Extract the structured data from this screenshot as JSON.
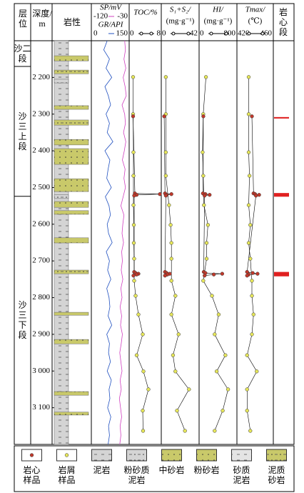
{
  "chart_data": {
    "type": "well-log",
    "header": {
      "strat": "层位",
      "depth": "深度/m",
      "lith": "岩性",
      "core": "岩心段"
    },
    "ylim": [
      2100,
      3200
    ],
    "yticks": [
      {
        "value": 2200,
        "label": "2 200"
      },
      {
        "value": 2300,
        "label": "2 300"
      },
      {
        "value": 2400,
        "label": "2 400"
      },
      {
        "value": 2500,
        "label": "2 500"
      },
      {
        "value": 2600,
        "label": "2 600"
      },
      {
        "value": 2700,
        "label": "2 700"
      },
      {
        "value": 2800,
        "label": "2 800"
      },
      {
        "value": 2900,
        "label": "2 900"
      },
      {
        "value": 3000,
        "label": "3 000"
      },
      {
        "value": 3100,
        "label": "3 100"
      }
    ],
    "strata": [
      {
        "name": "沙二段",
        "top": 2100,
        "base": 2170
      },
      {
        "name": "沙三上段",
        "top": 2170,
        "base": 2524
      },
      {
        "name": "沙三下段",
        "top": 2524,
        "base": 3200
      }
    ],
    "lithology": [
      {
        "type": "泥岩",
        "top": 2100,
        "base": 3200
      },
      {
        "type": "粉砂质泥岩",
        "top": 2205,
        "base": 2215
      },
      {
        "type": "粉砂质泥岩",
        "top": 2520,
        "base": 2530
      },
      {
        "type": "粉砂岩",
        "top": 2141,
        "base": 2155
      },
      {
        "type": "泥质砂岩",
        "top": 2180,
        "base": 2190
      },
      {
        "type": "粉砂岩",
        "top": 2277,
        "base": 2287
      },
      {
        "type": "泥质砂岩",
        "top": 2316,
        "base": 2330
      },
      {
        "type": "粉砂岩",
        "top": 2369,
        "base": 2384
      },
      {
        "type": "中砂岩",
        "top": 2394,
        "base": 2437
      },
      {
        "type": "中砂岩",
        "top": 2476,
        "base": 2511
      },
      {
        "type": "粉砂岩",
        "top": 2538,
        "base": 2554
      },
      {
        "type": "泥质砂岩",
        "top": 2563,
        "base": 2573
      },
      {
        "type": "粉砂岩",
        "top": 2637,
        "base": 2651
      },
      {
        "type": "泥质砂岩",
        "top": 2725,
        "base": 2735
      },
      {
        "type": "粉砂岩",
        "top": 2840,
        "base": 2848
      },
      {
        "type": "粉砂岩",
        "top": 2914,
        "base": 2926
      },
      {
        "type": "泥质砂岩",
        "top": 3056,
        "base": 3066
      },
      {
        "type": "粉砂岩",
        "top": 3112,
        "base": 3120
      }
    ],
    "logs": {
      "depth": [
        2100,
        2125,
        2150,
        2175,
        2200,
        2225,
        2250,
        2275,
        2300,
        2325,
        2350,
        2375,
        2400,
        2425,
        2450,
        2475,
        2500,
        2525,
        2550,
        2575,
        2600,
        2625,
        2650,
        2675,
        2700,
        2725,
        2750,
        2775,
        2800,
        2825,
        2850,
        2875,
        2900,
        2925,
        2950,
        2975,
        3000,
        3025,
        3050,
        3075,
        3100,
        3125,
        3150,
        3175,
        3200
      ],
      "series": [
        {
          "name": "SP/mV",
          "color": "#d040c0",
          "xlim": [
            -120,
            -30
          ],
          "values": [
            -38,
            -36,
            -40,
            -35,
            -42,
            -37,
            -34,
            -45,
            -38,
            -36,
            -41,
            -35,
            -39,
            -44,
            -37,
            -40,
            -36,
            -42,
            -48,
            -40,
            -43,
            -45,
            -41,
            -46,
            -44,
            -47,
            -43,
            -48,
            -45,
            -50,
            -46,
            -49,
            -44,
            -47,
            -51,
            -48,
            -45,
            -50,
            -47,
            -52,
            -49,
            -46,
            -50,
            -48,
            -51
          ]
        },
        {
          "name": "GR/API",
          "color": "#2050c0",
          "xlim": [
            0,
            150
          ],
          "values": [
            60,
            45,
            70,
            55,
            80,
            50,
            65,
            75,
            55,
            70,
            60,
            85,
            50,
            72,
            64,
            58,
            78,
            52,
            68,
            74,
            60,
            66,
            82,
            56,
            70,
            62,
            76,
            58,
            68,
            72,
            64,
            80,
            58,
            70,
            66,
            74,
            60,
            78,
            68,
            72,
            62,
            76,
            66,
            70,
            64
          ]
        }
      ]
    },
    "cuttings_depth": [
      2199,
      2300,
      2404,
      2468,
      2548,
      2602,
      2651,
      2694,
      2754,
      2795,
      2846,
      2900,
      2957,
      3001,
      3050,
      3108,
      3163
    ],
    "core_depth": [
      2306,
      2516,
      2518,
      2520,
      2522,
      2730,
      2733,
      2735,
      2737,
      2740
    ],
    "cuttings_color": "#e6e65a",
    "core_color": "#c0392b",
    "tracks": [
      {
        "label": "TOC/%",
        "xlim": [
          0,
          8
        ],
        "cuttings": [
          0.5,
          0.5,
          0.6,
          0.6,
          0.6,
          0.7,
          0.7,
          0.8,
          0.8,
          1.2,
          2.0,
          3.2,
          1.5,
          3.4,
          4.8,
          3.2,
          3.3
        ],
        "core": [
          0.5,
          1.0,
          8.0,
          1.5,
          0.8,
          0.8,
          1.2,
          2.0,
          1.5,
          0.6
        ]
      },
      {
        "label": "S₁+S₂/",
        "unit": "(mg·g⁻¹)",
        "xlim": [
          0,
          42
        ],
        "cuttings": [
          3,
          3,
          3,
          3,
          7,
          9,
          10,
          10,
          10,
          15,
          10,
          19,
          12,
          15,
          32,
          17,
          27
        ],
        "core": [
          1,
          2,
          10,
          4,
          3,
          2,
          4,
          8,
          5,
          2
        ]
      },
      {
        "label": "HI/",
        "unit": "(mg·g⁻¹)",
        "xlim": [
          0,
          800
        ],
        "cuttings": [
          112,
          48,
          32,
          48,
          64,
          160,
          128,
          128,
          48,
          256,
          416,
          320,
          576,
          368,
          640,
          512,
          320
        ],
        "core": [
          50,
          40,
          100,
          200,
          80,
          60,
          100,
          500,
          300,
          80
        ]
      },
      {
        "label": "Tmax/",
        "unit": "(℃)",
        "xlim": [
          420,
          460
        ],
        "cuttings": [
          432,
          432,
          432,
          433,
          432,
          434,
          432,
          434,
          436,
          436,
          438,
          436,
          430,
          442,
          430,
          430,
          434
        ],
        "core": [
          436,
          438,
          440,
          445,
          441,
          430,
          437,
          443,
          432,
          430
        ]
      }
    ],
    "core_intervals": [
      [
        2308,
        2312
      ],
      [
        2515,
        2525
      ],
      [
        2730,
        2742
      ]
    ],
    "core_interval_color": "#e02020"
  },
  "legend": [
    {
      "label": "岩心样品",
      "symbol": "core"
    },
    {
      "label": "岩屑样品",
      "symbol": "cuttings"
    },
    {
      "label": "泥岩",
      "color": "#d4d4d4",
      "pattern": "dash",
      "wide": false
    },
    {
      "label": "粉砂质泥岩",
      "color": "#d4d4d4",
      "pattern": "dashdot",
      "wide": false
    },
    {
      "label": "中砂岩",
      "color": "#c9c96a",
      "pattern": "dot",
      "wide": true
    },
    {
      "label": "粉砂岩",
      "color": "#c9c96a",
      "pattern": "dot",
      "wide": true
    },
    {
      "label": "砂质泥岩",
      "color": "#e4e4e4",
      "pattern": "dash",
      "wide": false
    },
    {
      "label": "泥质砂岩",
      "color": "#c9c96a",
      "pattern": "dashdot",
      "wide": true
    }
  ]
}
